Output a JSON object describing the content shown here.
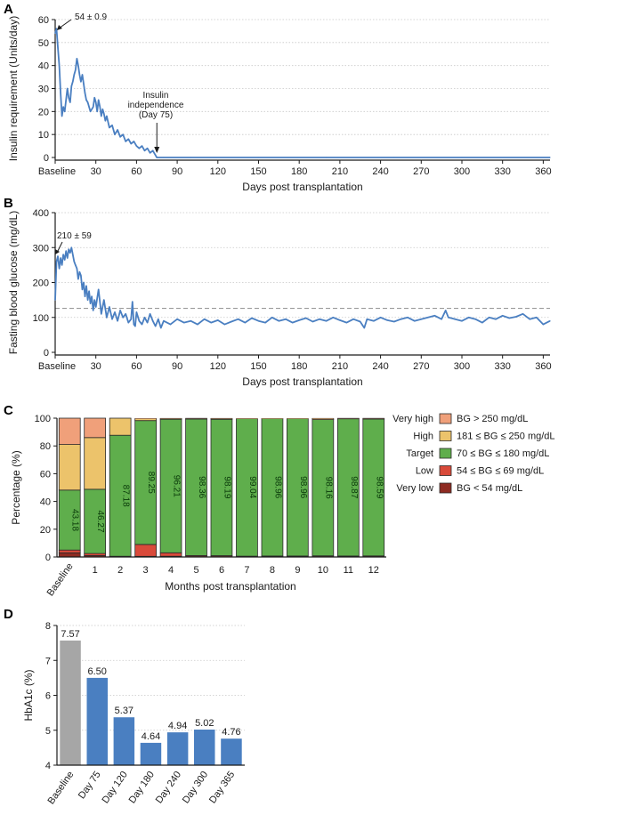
{
  "colors": {
    "line": "#4a7fc1",
    "axis": "#1a1a1a",
    "grid": "#c8c8c8",
    "threshold": "#9a9a9a",
    "very_high": "#f0a07a",
    "high": "#ecc36b",
    "target": "#5fae4c",
    "low": "#d94a3a",
    "very_low": "#8e2b22",
    "bar_baseline": "#a6a6a6",
    "bar_blue": "#4a7fc1"
  },
  "chart_data": [
    {
      "id": "A",
      "panel_letter": "A",
      "type": "line",
      "xlabel": "Days post transplantation",
      "ylabel": "Insulin requirement (Units/day)",
      "xlim": [
        0,
        365
      ],
      "ylim": [
        0,
        60
      ],
      "xticks": [
        0,
        30,
        60,
        90,
        120,
        150,
        180,
        210,
        240,
        270,
        300,
        330,
        360
      ],
      "xticklabels": [
        "Baseline",
        "30",
        "60",
        "90",
        "120",
        "150",
        "180",
        "210",
        "240",
        "270",
        "300",
        "330",
        "360"
      ],
      "yticks": [
        0,
        10,
        20,
        30,
        40,
        50,
        60
      ],
      "grid": "horizontal dotted",
      "series": [
        {
          "x": [
            0,
            1,
            2,
            3,
            4,
            5,
            6,
            7,
            8,
            9,
            10,
            11,
            12,
            13,
            14,
            15,
            16,
            17,
            18,
            19,
            20,
            21,
            22,
            23,
            24,
            25,
            26,
            27,
            28,
            29,
            30,
            31,
            32,
            33,
            34,
            35,
            36,
            37,
            38,
            40,
            42,
            44,
            46,
            48,
            50,
            52,
            54,
            56,
            58,
            60,
            62,
            64,
            66,
            68,
            70,
            72,
            74,
            75,
            80,
            100,
            150,
            200,
            250,
            300,
            365
          ],
          "y": [
            54,
            56,
            48,
            40,
            28,
            18,
            22,
            20,
            25,
            30,
            26,
            24,
            31,
            33,
            36,
            38,
            43,
            40,
            36,
            33,
            36,
            32,
            28,
            25,
            24,
            22,
            20,
            21,
            22,
            26,
            24,
            20,
            25,
            22,
            18,
            21,
            19,
            16,
            18,
            13,
            14,
            10,
            12,
            9,
            10,
            7,
            8,
            6,
            7,
            5,
            4,
            5,
            3,
            4,
            2,
            3,
            1,
            0,
            0,
            0,
            0,
            0,
            0,
            0,
            0
          ]
        }
      ],
      "annotations": [
        {
          "text": "54 ± 0.9",
          "x": 1,
          "y": 56
        },
        {
          "text": "Insulin",
          "x": 75,
          "y": 0
        },
        {
          "text": "independence",
          "x": 75,
          "y": 0
        },
        {
          "text": "(Day 75)",
          "x": 75,
          "y": 0
        }
      ]
    },
    {
      "id": "B",
      "panel_letter": "B",
      "type": "line",
      "xlabel": "Days post transplantation",
      "ylabel": "Fasting blood glucose (mg/dL)",
      "xlim": [
        0,
        365
      ],
      "ylim": [
        0,
        400
      ],
      "xticks": [
        0,
        30,
        60,
        90,
        120,
        150,
        180,
        210,
        240,
        270,
        300,
        330,
        360
      ],
      "xticklabels": [
        "Baseline",
        "30",
        "60",
        "90",
        "120",
        "150",
        "180",
        "210",
        "240",
        "270",
        "300",
        "330",
        "360"
      ],
      "yticks": [
        0,
        100,
        200,
        300,
        400
      ],
      "grid": "horizontal dotted",
      "threshold": 126,
      "series": [
        {
          "x": [
            0,
            1,
            2,
            3,
            4,
            5,
            6,
            7,
            8,
            9,
            10,
            11,
            12,
            13,
            14,
            15,
            16,
            17,
            18,
            19,
            20,
            21,
            22,
            23,
            24,
            25,
            26,
            27,
            28,
            29,
            30,
            32,
            34,
            36,
            38,
            40,
            42,
            44,
            46,
            48,
            50,
            52,
            54,
            56,
            57,
            58,
            59,
            60,
            62,
            64,
            66,
            68,
            70,
            72,
            74,
            76,
            78,
            80,
            85,
            90,
            95,
            100,
            105,
            110,
            115,
            120,
            125,
            130,
            135,
            140,
            145,
            150,
            155,
            160,
            165,
            170,
            175,
            180,
            185,
            190,
            195,
            200,
            205,
            210,
            215,
            220,
            225,
            228,
            230,
            235,
            240,
            245,
            250,
            255,
            260,
            265,
            270,
            275,
            280,
            285,
            288,
            290,
            295,
            300,
            305,
            310,
            315,
            320,
            325,
            330,
            335,
            340,
            345,
            350,
            355,
            360,
            365
          ],
          "y": [
            150,
            260,
            275,
            240,
            270,
            250,
            280,
            265,
            290,
            270,
            295,
            285,
            300,
            280,
            260,
            250,
            240,
            210,
            230,
            220,
            180,
            200,
            160,
            190,
            150,
            175,
            140,
            160,
            120,
            150,
            130,
            180,
            110,
            150,
            100,
            130,
            95,
            115,
            90,
            120,
            100,
            110,
            85,
            95,
            145,
            80,
            75,
            115,
            90,
            80,
            100,
            85,
            110,
            90,
            75,
            95,
            70,
            90,
            80,
            95,
            85,
            90,
            80,
            95,
            85,
            92,
            80,
            88,
            95,
            85,
            98,
            90,
            85,
            100,
            90,
            95,
            85,
            92,
            98,
            88,
            95,
            90,
            100,
            92,
            85,
            95,
            88,
            70,
            95,
            90,
            100,
            92,
            88,
            95,
            100,
            90,
            95,
            100,
            105,
            95,
            120,
            100,
            95,
            90,
            100,
            95,
            85,
            100,
            95,
            105,
            98,
            102,
            110,
            95,
            100,
            80,
            90
          ]
        }
      ],
      "annotations": [
        {
          "text": "210 ± 59",
          "x": 2,
          "y": 270
        }
      ]
    },
    {
      "id": "C",
      "panel_letter": "C",
      "type": "bar",
      "stacked": true,
      "xlabel": "Months post transplantation",
      "ylabel": "Percentage (%)",
      "ylim": [
        0,
        100
      ],
      "yticks": [
        0,
        20,
        40,
        60,
        80,
        100
      ],
      "categories": [
        "Baseline",
        "1",
        "2",
        "3",
        "4",
        "5",
        "6",
        "7",
        "8",
        "9",
        "10",
        "11",
        "12"
      ],
      "series": [
        {
          "name": "Very low",
          "values": [
            3.0,
            1.0,
            0.0,
            0.5,
            0.5,
            0.2,
            0.2,
            0.1,
            0.2,
            0.2,
            0.2,
            0.2,
            0.2
          ]
        },
        {
          "name": "Low",
          "values": [
            2.0,
            1.5,
            0.5,
            8.5,
            2.5,
            0.8,
            0.8,
            0.5,
            0.5,
            0.5,
            0.6,
            0.5,
            0.6
          ]
        },
        {
          "name": "Target",
          "values": [
            43.18,
            46.27,
            87.18,
            89.25,
            96.21,
            98.36,
            98.19,
            99.04,
            98.96,
            98.96,
            98.16,
            98.87,
            98.59
          ]
        },
        {
          "name": "High",
          "values": [
            32.82,
            37.23,
            12.32,
            1.5,
            0.6,
            0.5,
            0.6,
            0.26,
            0.24,
            0.24,
            0.84,
            0.33,
            0.51
          ]
        },
        {
          "name": "Very high",
          "values": [
            19.0,
            14.0,
            0.0,
            0.25,
            0.19,
            0.14,
            0.21,
            0.1,
            0.1,
            0.1,
            0.2,
            0.1,
            0.1
          ]
        }
      ],
      "target_labels": [
        "43.18",
        "46.27",
        "87.18",
        "89.25",
        "96.21",
        "98.36",
        "98.19",
        "99.04",
        "98.96",
        "98.96",
        "98.16",
        "98.87",
        "98.59"
      ],
      "legend_placement": "right",
      "legend": [
        {
          "name": "Very high",
          "range": "BG > 250 mg/dL",
          "color_key": "very_high"
        },
        {
          "name": "High",
          "range": "181 ≤ BG ≤ 250 mg/dL",
          "color_key": "high"
        },
        {
          "name": "Target",
          "range": "70 ≤ BG ≤ 180 mg/dL",
          "color_key": "target"
        },
        {
          "name": "Low",
          "range": "54 ≤ BG ≤ 69 mg/dL",
          "color_key": "low"
        },
        {
          "name": "Very low",
          "range": "BG < 54 mg/dL",
          "color_key": "very_low"
        }
      ]
    },
    {
      "id": "D",
      "panel_letter": "D",
      "type": "bar",
      "xlabel": "",
      "ylabel": "HbA1c (%)",
      "ylim": [
        4,
        8
      ],
      "yticks": [
        4,
        5,
        6,
        7,
        8
      ],
      "categories": [
        "Baseline",
        "Day 75",
        "Day 120",
        "Day 180",
        "Day 240",
        "Day 300",
        "Day 365"
      ],
      "values": [
        7.57,
        6.5,
        5.37,
        4.64,
        4.94,
        5.02,
        4.76
      ],
      "value_labels": [
        "7.57",
        "6.50",
        "5.37",
        "4.64",
        "4.94",
        "5.02",
        "4.76"
      ],
      "grid": "horizontal dotted"
    }
  ]
}
